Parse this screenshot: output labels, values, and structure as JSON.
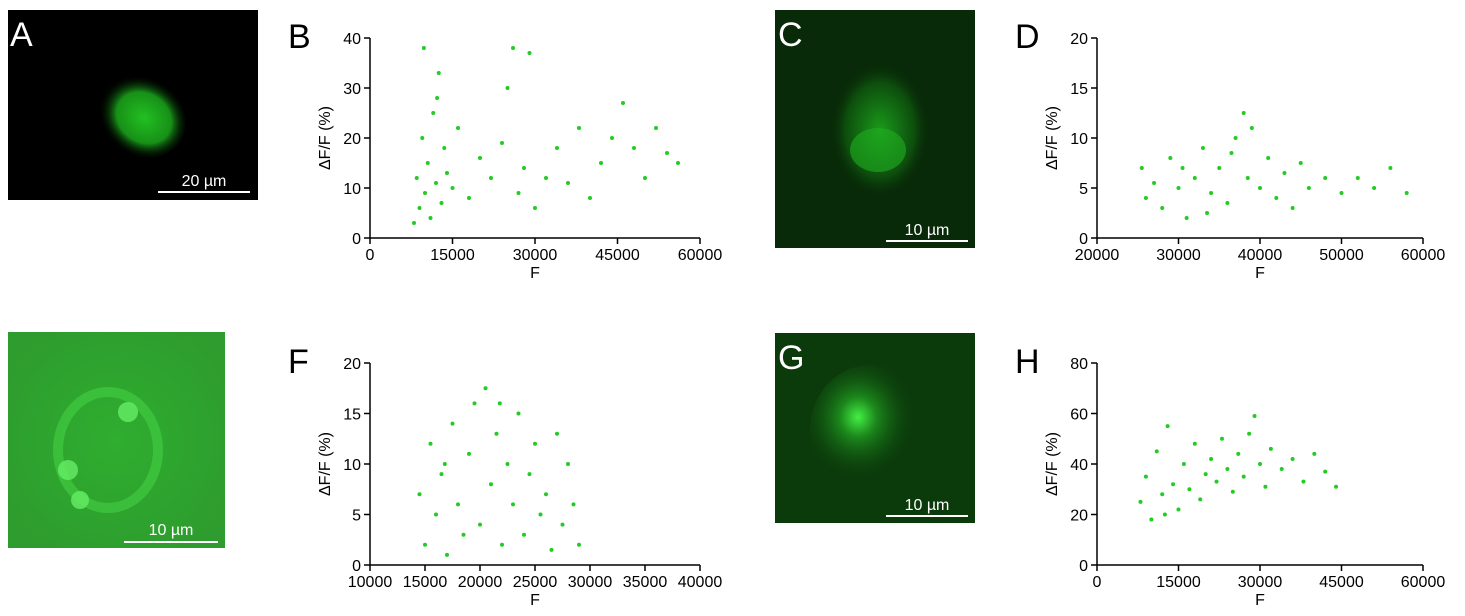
{
  "chart_data": [
    {
      "type": "scatter",
      "panel": "B",
      "xlabel": "F",
      "ylabel": "ΔF/F (%)",
      "color": "#22cc22",
      "xlim": [
        0,
        60000
      ],
      "ylim": [
        0,
        40
      ],
      "xticks": [
        0,
        15000,
        30000,
        45000,
        60000
      ],
      "yticks": [
        0,
        10,
        20,
        30,
        40
      ],
      "x": [
        8000,
        8500,
        9000,
        9500,
        10000,
        10500,
        11000,
        11500,
        12000,
        12500,
        13000,
        13500,
        14000,
        9800,
        12200,
        15000,
        16000,
        18000,
        20000,
        22000,
        24000,
        26000,
        27000,
        28000,
        30000,
        32000,
        34000,
        36000,
        38000,
        40000,
        42000,
        44000,
        46000,
        48000,
        50000,
        52000,
        54000,
        56000,
        29000,
        25000
      ],
      "values": [
        3,
        12,
        6,
        20,
        9,
        15,
        4,
        25,
        11,
        33,
        7,
        18,
        13,
        38,
        28,
        10,
        22,
        8,
        16,
        12,
        19,
        38,
        9,
        14,
        6,
        12,
        18,
        11,
        22,
        8,
        15,
        20,
        27,
        18,
        12,
        22,
        17,
        15,
        37,
        30
      ]
    },
    {
      "type": "scatter",
      "panel": "D",
      "xlabel": "F",
      "ylabel": "ΔF/F (%)",
      "color": "#22cc22",
      "xlim": [
        20000,
        60000
      ],
      "ylim": [
        0,
        20
      ],
      "xticks": [
        20000,
        30000,
        40000,
        50000,
        60000
      ],
      "yticks": [
        0,
        5,
        10,
        15,
        20
      ],
      "x": [
        25500,
        26000,
        27000,
        28000,
        29000,
        30000,
        31000,
        32000,
        33000,
        34000,
        35000,
        36000,
        37000,
        38000,
        38500,
        39000,
        40000,
        41000,
        42000,
        43000,
        44000,
        45000,
        46000,
        48000,
        50000,
        52000,
        54000,
        56000,
        58000,
        30500,
        33500,
        36500
      ],
      "values": [
        7,
        4,
        5.5,
        3,
        8,
        5,
        2,
        6,
        9,
        4.5,
        7,
        3.5,
        10,
        12.5,
        6,
        11,
        5,
        8,
        4,
        6.5,
        3,
        7.5,
        5,
        6,
        4.5,
        6,
        5,
        7,
        4.5,
        7,
        2.5,
        8.5
      ]
    },
    {
      "type": "scatter",
      "panel": "F",
      "xlabel": "F",
      "ylabel": "ΔF/F (%)",
      "color": "#22cc22",
      "xlim": [
        10000,
        40000
      ],
      "ylim": [
        0,
        20
      ],
      "xticks": [
        10000,
        15000,
        20000,
        25000,
        30000,
        35000,
        40000
      ],
      "yticks": [
        0,
        5,
        10,
        15,
        20
      ],
      "x": [
        14500,
        15000,
        15500,
        16000,
        16500,
        17000,
        17500,
        18000,
        18500,
        19000,
        19500,
        20000,
        20500,
        21000,
        21500,
        22000,
        22500,
        23000,
        23500,
        24000,
        24500,
        25000,
        25500,
        26000,
        26500,
        27000,
        27500,
        28000,
        28500,
        29000,
        16800,
        21800
      ],
      "values": [
        7,
        2,
        12,
        5,
        9,
        1,
        14,
        6,
        3,
        11,
        16,
        4,
        17.5,
        8,
        13,
        2,
        10,
        6,
        15,
        3,
        9,
        12,
        5,
        7,
        1.5,
        13,
        4,
        10,
        6,
        2,
        10,
        16
      ]
    },
    {
      "type": "scatter",
      "panel": "H",
      "xlabel": "F",
      "ylabel": "ΔF/F (%)",
      "color": "#22cc22",
      "xlim": [
        0,
        60000
      ],
      "ylim": [
        0,
        80
      ],
      "xticks": [
        0,
        15000,
        30000,
        45000,
        60000
      ],
      "yticks": [
        0,
        20,
        40,
        60,
        80
      ],
      "x": [
        8000,
        9000,
        10000,
        11000,
        12000,
        13000,
        14000,
        15000,
        16000,
        17000,
        18000,
        19000,
        20000,
        21000,
        22000,
        23000,
        24000,
        25000,
        26000,
        27000,
        28000,
        29000,
        30000,
        31000,
        32000,
        34000,
        36000,
        38000,
        40000,
        42000,
        44000,
        12500
      ],
      "values": [
        25,
        35,
        18,
        45,
        28,
        55,
        32,
        22,
        40,
        30,
        48,
        26,
        36,
        42,
        33,
        50,
        38,
        29,
        44,
        35,
        52,
        59,
        40,
        31,
        46,
        38,
        42,
        33,
        44,
        37,
        31,
        20
      ]
    }
  ],
  "images": [
    {
      "panel": "A",
      "scale_bar": "20 µm"
    },
    {
      "panel": "C",
      "scale_bar": "10 µm"
    },
    {
      "scale_bar": "10 µm"
    },
    {
      "panel": "G",
      "scale_bar": "10 µm"
    }
  ]
}
